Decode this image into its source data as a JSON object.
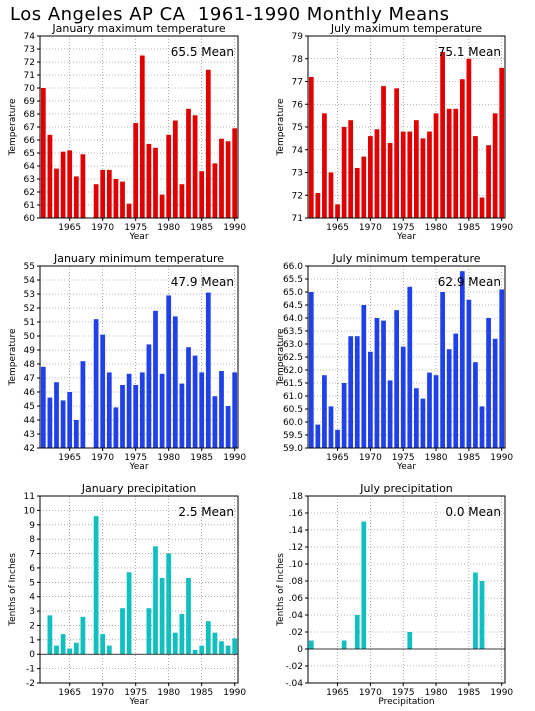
{
  "page_title": "Los Angeles AP CA  1961-1990 Monthly Means",
  "chart_data": [
    {
      "type": "bar",
      "title": "January maximum temperature",
      "mean_label": "65.5  Mean",
      "xlabel": "Year",
      "ylabel": "Temperature",
      "color": "#e00000",
      "ylim": [
        60,
        74
      ],
      "ytick_step": 1,
      "xticks": [
        1965,
        1970,
        1975,
        1980,
        1985,
        1990
      ],
      "grid": true,
      "x": [
        1961,
        1962,
        1963,
        1964,
        1965,
        1966,
        1967,
        1968,
        1969,
        1970,
        1971,
        1972,
        1973,
        1974,
        1975,
        1976,
        1977,
        1978,
        1979,
        1980,
        1981,
        1982,
        1983,
        1984,
        1985,
        1986,
        1987,
        1988,
        1989,
        1990
      ],
      "values": [
        70.0,
        66.4,
        63.8,
        65.1,
        65.2,
        63.2,
        64.9,
        null,
        62.6,
        63.7,
        63.7,
        63.0,
        62.8,
        61.1,
        67.3,
        72.5,
        65.7,
        65.4,
        61.8,
        66.4,
        67.5,
        62.6,
        68.4,
        67.9,
        63.6,
        71.4,
        64.2,
        66.1,
        65.9,
        66.9
      ]
    },
    {
      "type": "bar",
      "title": "July maximum temperature",
      "mean_label": "75.1  Mean",
      "xlabel": "Year",
      "ylabel": "Temperature",
      "color": "#e00000",
      "ylim": [
        71,
        79
      ],
      "ytick_step": 1,
      "xticks": [
        1965,
        1970,
        1975,
        1980,
        1985,
        1990
      ],
      "grid": true,
      "x": [
        1961,
        1962,
        1963,
        1964,
        1965,
        1966,
        1967,
        1968,
        1969,
        1970,
        1971,
        1972,
        1973,
        1974,
        1975,
        1976,
        1977,
        1978,
        1979,
        1980,
        1981,
        1982,
        1983,
        1984,
        1985,
        1986,
        1987,
        1988,
        1989,
        1990
      ],
      "values": [
        77.2,
        72.1,
        75.6,
        73.0,
        71.6,
        75.0,
        75.3,
        73.2,
        73.7,
        74.6,
        74.9,
        76.8,
        74.3,
        76.7,
        74.8,
        74.8,
        75.3,
        74.5,
        74.8,
        75.6,
        78.3,
        75.8,
        75.8,
        77.1,
        78.0,
        74.6,
        71.9,
        74.2,
        75.6,
        77.6
      ]
    },
    {
      "type": "bar",
      "title": "January minimum temperature",
      "mean_label": "47.9  Mean",
      "xlabel": "Year",
      "ylabel": "Temperature",
      "color": "#2040e8",
      "ylim": [
        42,
        55
      ],
      "ytick_step": 1,
      "xticks": [
        1965,
        1970,
        1975,
        1980,
        1985,
        1990
      ],
      "grid": true,
      "x": [
        1961,
        1962,
        1963,
        1964,
        1965,
        1966,
        1967,
        1968,
        1969,
        1970,
        1971,
        1972,
        1973,
        1974,
        1975,
        1976,
        1977,
        1978,
        1979,
        1980,
        1981,
        1982,
        1983,
        1984,
        1985,
        1986,
        1987,
        1988,
        1989,
        1990
      ],
      "values": [
        47.8,
        45.6,
        46.7,
        45.4,
        46.0,
        44.0,
        48.2,
        null,
        51.2,
        50.1,
        47.4,
        44.9,
        46.5,
        47.3,
        46.5,
        47.4,
        49.4,
        51.8,
        47.3,
        52.9,
        51.4,
        46.6,
        49.2,
        48.6,
        47.4,
        53.1,
        45.7,
        47.5,
        45.0,
        47.4
      ]
    },
    {
      "type": "bar",
      "title": "July minimum temperature",
      "mean_label": "62.9  Mean",
      "xlabel": "Year",
      "ylabel": "Temperature",
      "color": "#2040e8",
      "ylim": [
        59,
        66
      ],
      "ytick_step": 0.5,
      "xticks": [
        1965,
        1970,
        1975,
        1980,
        1985,
        1990
      ],
      "grid": true,
      "x": [
        1961,
        1962,
        1963,
        1964,
        1965,
        1966,
        1967,
        1968,
        1969,
        1970,
        1971,
        1972,
        1973,
        1974,
        1975,
        1976,
        1977,
        1978,
        1979,
        1980,
        1981,
        1982,
        1983,
        1984,
        1985,
        1986,
        1987,
        1988,
        1989,
        1990
      ],
      "values": [
        65.0,
        59.9,
        61.8,
        60.6,
        59.7,
        61.5,
        63.3,
        63.3,
        64.5,
        62.7,
        64.0,
        63.9,
        61.6,
        64.3,
        62.9,
        65.2,
        61.3,
        60.9,
        61.9,
        61.8,
        65.0,
        62.8,
        63.4,
        65.8,
        64.7,
        62.3,
        60.6,
        64.0,
        63.2,
        65.1
      ]
    },
    {
      "type": "bar",
      "title": "January precipitation",
      "mean_label": "2.5  Mean",
      "xlabel": "Year",
      "ylabel": "Tenths of Inches",
      "color": "#10c0c0",
      "ylim": [
        -2,
        11
      ],
      "ytick_step": 1,
      "xticks": [
        1965,
        1970,
        1975,
        1980,
        1985,
        1990
      ],
      "grid": true,
      "x": [
        1961,
        1962,
        1963,
        1964,
        1965,
        1966,
        1967,
        1968,
        1969,
        1970,
        1971,
        1972,
        1973,
        1974,
        1975,
        1976,
        1977,
        1978,
        1979,
        1980,
        1981,
        1982,
        1983,
        1984,
        1985,
        1986,
        1987,
        1988,
        1989,
        1990
      ],
      "values": [
        0.0,
        2.7,
        0.6,
        1.4,
        0.4,
        0.8,
        2.6,
        null,
        9.6,
        1.4,
        0.6,
        0.0,
        3.2,
        5.7,
        0.0,
        0.0,
        3.2,
        7.5,
        5.3,
        7.0,
        1.5,
        2.8,
        5.3,
        0.3,
        0.6,
        2.3,
        1.5,
        0.9,
        0.6,
        1.1
      ]
    },
    {
      "type": "bar",
      "title": "July precipitation",
      "mean_label": "0.0  Mean",
      "xlabel": "Precipitation",
      "ylabel": "Tenths of Inches",
      "color": "#10c0c0",
      "ylim": [
        -0.04,
        0.18
      ],
      "ytick_step": 0.02,
      "xticks": [
        1965,
        1970,
        1975,
        1980,
        1985,
        1990
      ],
      "grid": true,
      "x": [
        1961,
        1962,
        1963,
        1964,
        1965,
        1966,
        1967,
        1968,
        1969,
        1970,
        1971,
        1972,
        1973,
        1974,
        1975,
        1976,
        1977,
        1978,
        1979,
        1980,
        1981,
        1982,
        1983,
        1984,
        1985,
        1986,
        1987,
        1988,
        1989,
        1990
      ],
      "values": [
        0.01,
        0.0,
        0.0,
        0.0,
        0.0,
        0.01,
        0.0,
        0.04,
        0.15,
        0.0,
        0.0,
        0.0,
        0.0,
        0.0,
        0.0,
        0.02,
        0.0,
        0.0,
        0.0,
        0.0,
        0.0,
        0.0,
        0.0,
        0.0,
        0.0,
        0.09,
        0.08,
        0.0,
        0.0,
        0.0
      ]
    }
  ]
}
